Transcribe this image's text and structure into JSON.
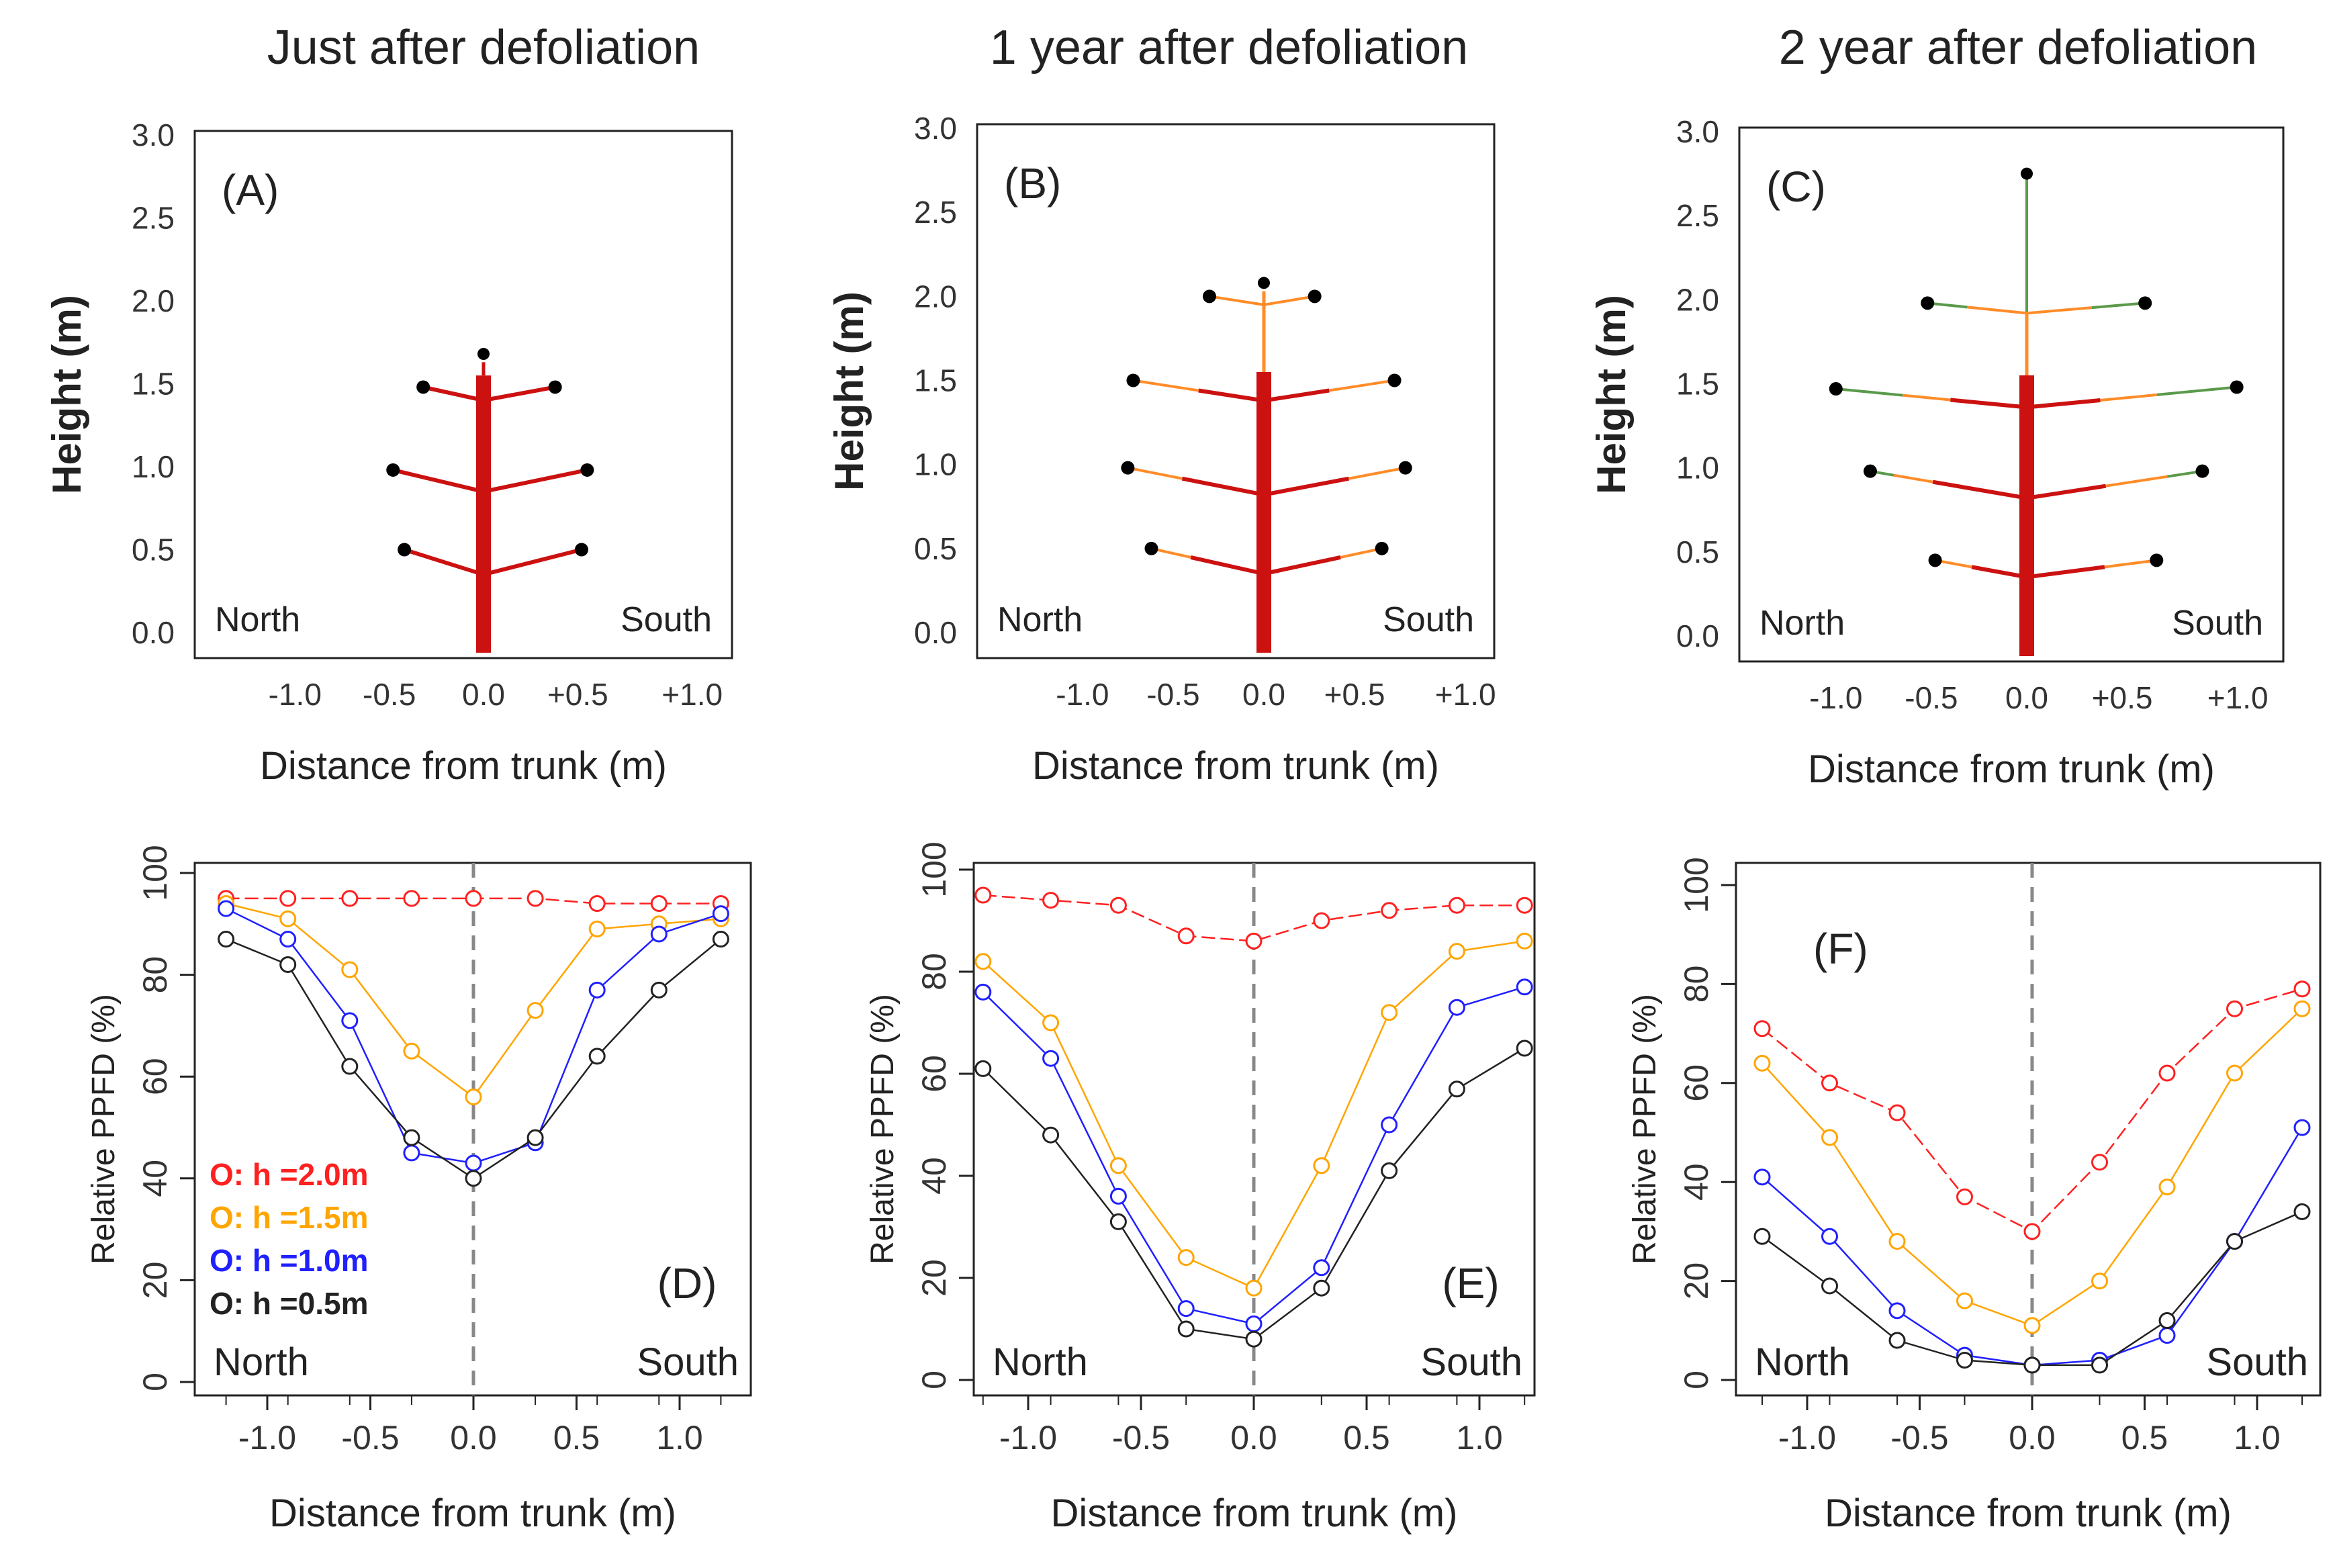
{
  "chart_data": {
    "columns": [
      {
        "title": "Just after defoliation",
        "tree": {
          "tag": "(A)",
          "ylabel": "Height (m)",
          "xlabel": "Distance from trunk  (m)",
          "yticks": [
            "0.0",
            "0.5",
            "1.0",
            "1.5",
            "2.0",
            "2.5",
            "3.0"
          ],
          "xticks": [
            "-1.0",
            "-0.5",
            "0.0",
            "+0.5",
            "+1.0"
          ],
          "north": "North",
          "south": "South"
        },
        "ppfd": {
          "type": "line",
          "tag": "(D)",
          "ylabel": "Relative PPFD (%)",
          "xlabel": "Distance from trunk  (m)",
          "xticks": [
            "-1.0",
            "-0.5",
            "0.0",
            "0.5",
            "1.0"
          ],
          "yticks": [
            "0",
            "20",
            "40",
            "60",
            "80",
            "100"
          ],
          "north": "North",
          "south": "South",
          "x": [
            -1.2,
            -0.9,
            -0.6,
            -0.3,
            0.0,
            0.3,
            0.6,
            0.9,
            1.2
          ],
          "series": [
            {
              "name": "O: h =2.0m",
              "color": "#ff2020",
              "values": [
                95,
                95,
                95,
                95,
                95,
                95,
                94,
                94,
                94
              ]
            },
            {
              "name": "O: h =1.5m",
              "color": "#ffa500",
              "values": [
                94,
                91,
                81,
                65,
                56,
                73,
                89,
                90,
                91
              ]
            },
            {
              "name": "O: h =1.0m",
              "color": "#2020ff",
              "values": [
                93,
                87,
                71,
                45,
                43,
                47,
                77,
                88,
                92
              ]
            },
            {
              "name": "O: h =0.5m",
              "color": "#222222",
              "values": [
                87,
                82,
                62,
                48,
                40,
                48,
                64,
                77,
                87
              ]
            }
          ],
          "legend": [
            "O: h =2.0m",
            "O: h =1.5m",
            "O: h =1.0m",
            "O: h =0.5m"
          ]
        }
      },
      {
        "title": "1 year after defoliation",
        "tree": {
          "tag": "(B)",
          "ylabel": "Height (m)",
          "xlabel": "Distance from trunk  (m)",
          "yticks": [
            "0.0",
            "0.5",
            "1.0",
            "1.5",
            "2.0",
            "2.5",
            "3.0"
          ],
          "xticks": [
            "-1.0",
            "-0.5",
            "0.0",
            "+0.5",
            "+1.0"
          ],
          "north": "North",
          "south": "South"
        },
        "ppfd": {
          "type": "line",
          "tag": "(E)",
          "ylabel": "Relative PPFD (%)",
          "xlabel": "Distance from trunk  (m)",
          "xticks": [
            "-1.0",
            "-0.5",
            "0.0",
            "0.5",
            "1.0"
          ],
          "yticks": [
            "0",
            "20",
            "40",
            "60",
            "80",
            "100"
          ],
          "north": "North",
          "south": "South",
          "x": [
            -1.2,
            -0.9,
            -0.6,
            -0.3,
            0.0,
            0.3,
            0.6,
            0.9,
            1.2
          ],
          "series": [
            {
              "name": "h=2.0m",
              "color": "#ff2020",
              "values": [
                95,
                94,
                93,
                87,
                86,
                90,
                92,
                93,
                93
              ]
            },
            {
              "name": "h=1.5m",
              "color": "#ffa500",
              "values": [
                82,
                70,
                42,
                24,
                18,
                42,
                72,
                84,
                86
              ]
            },
            {
              "name": "h=1.0m",
              "color": "#2020ff",
              "values": [
                76,
                63,
                36,
                14,
                11,
                22,
                50,
                73,
                77
              ]
            },
            {
              "name": "h=0.5m",
              "color": "#222222",
              "values": [
                61,
                48,
                31,
                10,
                8,
                18,
                41,
                57,
                65
              ]
            }
          ]
        }
      },
      {
        "title": "2 year after defoliation",
        "tree": {
          "tag": "(C)",
          "ylabel": "Height (m)",
          "xlabel": "Distance from trunk  (m)",
          "yticks": [
            "0.0",
            "0.5",
            "1.0",
            "1.5",
            "2.0",
            "2.5",
            "3.0"
          ],
          "xticks": [
            "-1.0",
            "-0.5",
            "0.0",
            "+0.5",
            "+1.0"
          ],
          "north": "North",
          "south": "South"
        },
        "ppfd": {
          "type": "line",
          "tag": "(F)",
          "ylabel": "Relative PPFD (%)",
          "xlabel": "Distance from trunk  (m)",
          "xticks": [
            "-1.0",
            "-0.5",
            "0.0",
            "0.5",
            "1.0"
          ],
          "yticks": [
            "0",
            "20",
            "40",
            "60",
            "80",
            "100"
          ],
          "north": "North",
          "south": "South",
          "x": [
            -1.2,
            -0.9,
            -0.6,
            -0.3,
            0.0,
            0.3,
            0.6,
            0.9,
            1.2
          ],
          "series": [
            {
              "name": "h=2.0m",
              "color": "#ff2020",
              "values": [
                71,
                60,
                54,
                37,
                30,
                44,
                62,
                75,
                79
              ]
            },
            {
              "name": "h=1.5m",
              "color": "#ffa500",
              "values": [
                64,
                49,
                28,
                16,
                11,
                20,
                39,
                62,
                75
              ]
            },
            {
              "name": "h=1.0m",
              "color": "#2020ff",
              "values": [
                41,
                29,
                14,
                5,
                3,
                4,
                9,
                28,
                51
              ]
            },
            {
              "name": "h=0.5m",
              "color": "#222222",
              "values": [
                29,
                19,
                8,
                4,
                3,
                3,
                12,
                28,
                34
              ]
            }
          ]
        }
      }
    ]
  }
}
